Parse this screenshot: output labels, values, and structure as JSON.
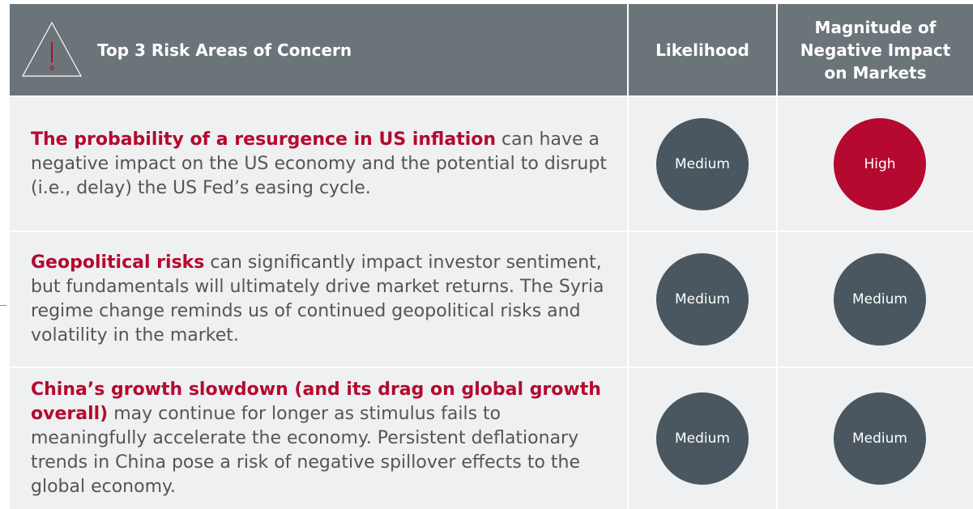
{
  "header": {
    "title": "Top 3 Risk Areas of Concern",
    "likelihood": "Likelihood",
    "impact": "Magnitude of Negative Impact on Markets"
  },
  "rows": [
    {
      "highlight": "The probability of a resurgence in US inflation",
      "text": "can have a negative impact on the US economy and the potential to disrupt (i.e., delay) the US Fed’s easing cycle.",
      "likelihood": {
        "label": "Medium",
        "color": "#4a5760"
      },
      "impact": {
        "label": "High",
        "color": "#b5092f"
      }
    },
    {
      "highlight": "Geopolitical risks",
      "text": "can significantly impact investor sentiment, but fundamentals will ultimately drive market returns. The Syria regime change reminds us of continued geopolitical risks and volatility in the market.",
      "likelihood": {
        "label": "Medium",
        "color": "#4a5760"
      },
      "impact": {
        "label": "Medium",
        "color": "#4a5760"
      }
    },
    {
      "highlight": "China’s growth slowdown (and its drag on global growth overall)",
      "text": "may continue for longer as stimulus fails to meaningfully accelerate the economy. Persistent deflationary trends in China pose a risk of negative spillover effects to the global economy.",
      "likelihood": {
        "label": "Medium",
        "color": "#4a5760"
      },
      "impact": {
        "label": "Medium",
        "color": "#4a5760"
      }
    }
  ]
}
